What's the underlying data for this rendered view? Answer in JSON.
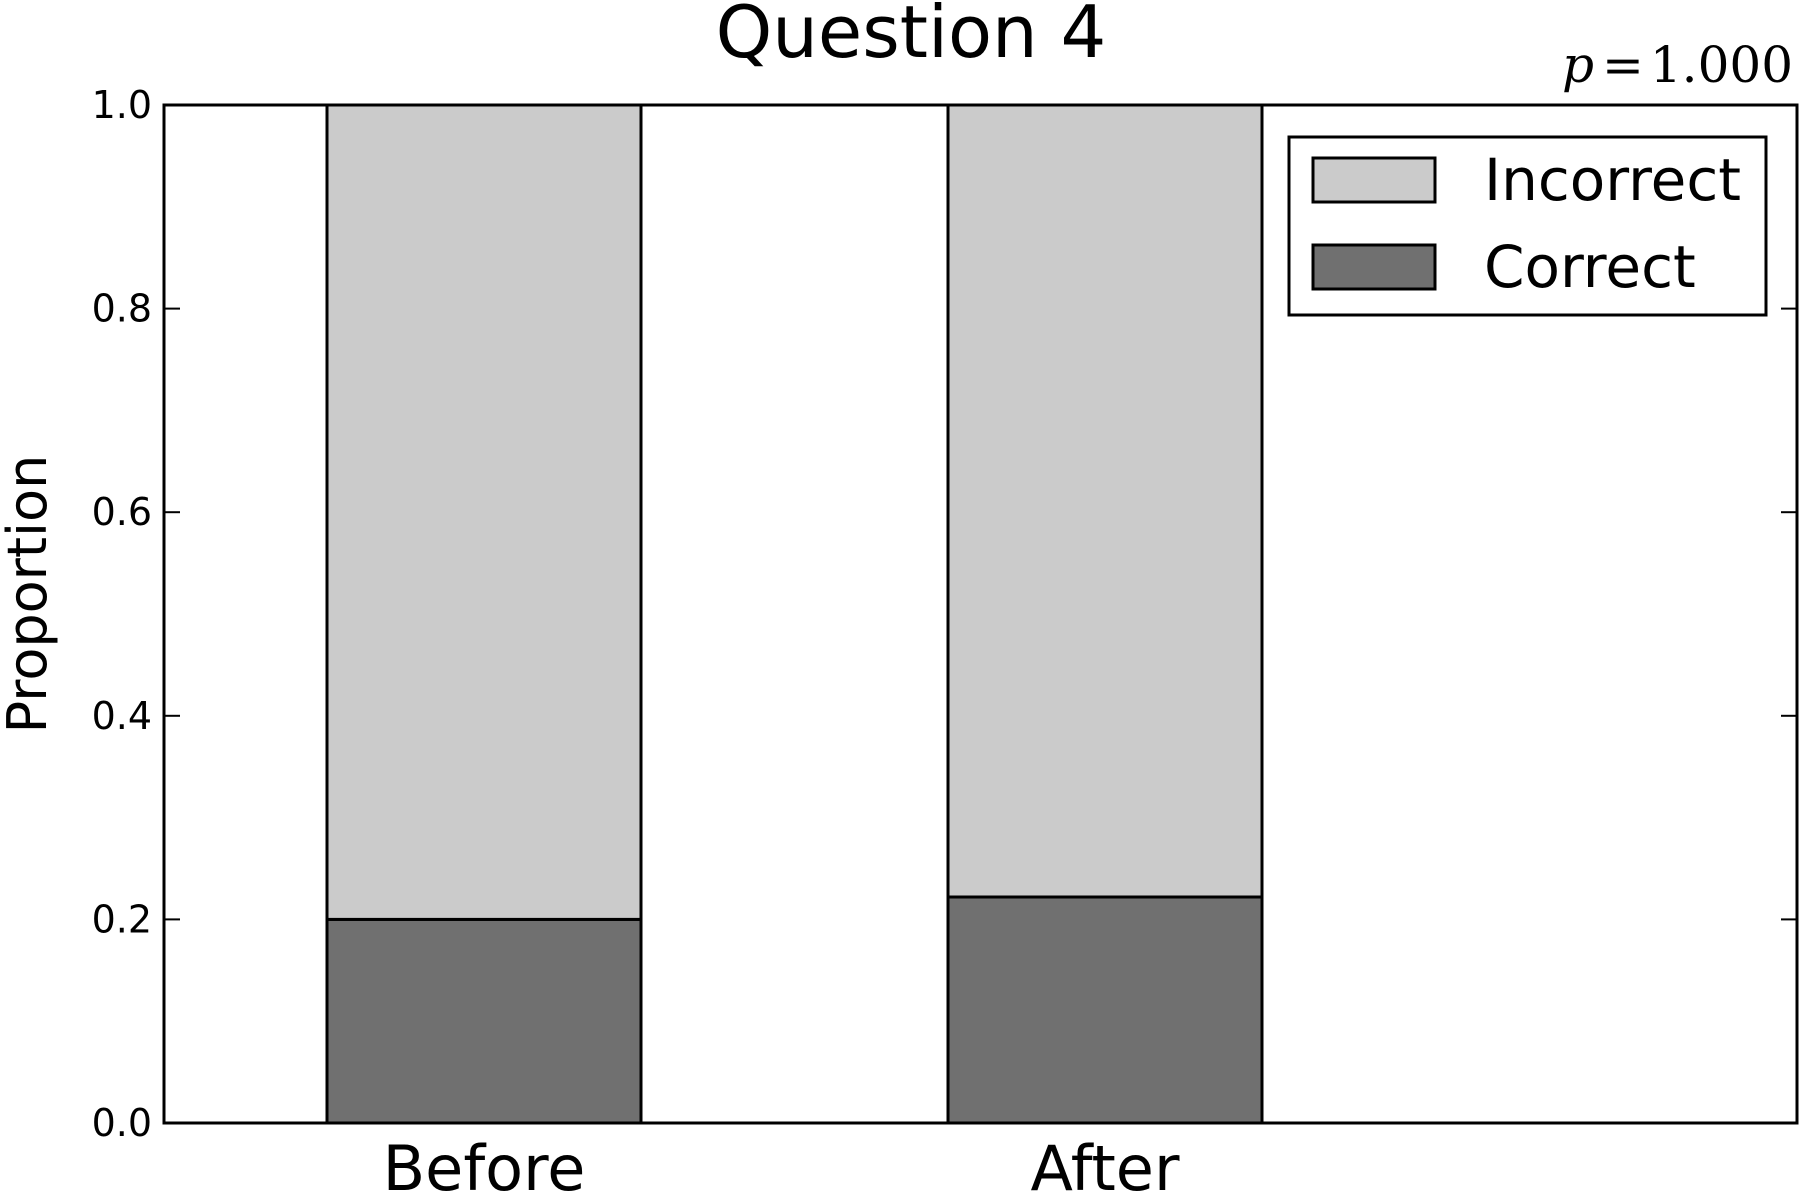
{
  "chart_data": {
    "type": "bar",
    "stacked": true,
    "title": "Question 4",
    "annotation": {
      "symbol": "p",
      "operator": "=",
      "value": "1.000"
    },
    "ylabel": "Proportion",
    "xlabel": "",
    "ylim": [
      0,
      1.0
    ],
    "yticks": [
      "0.0",
      "0.2",
      "0.4",
      "0.6",
      "0.8",
      "1.0"
    ],
    "categories": [
      "Before",
      "After"
    ],
    "series": [
      {
        "name": "Correct",
        "values": [
          0.2,
          0.222
        ],
        "color": "#707070"
      },
      {
        "name": "Incorrect",
        "values": [
          0.8,
          0.778
        ],
        "color": "#cbcbcb"
      }
    ],
    "legend": {
      "position": "top-right",
      "entries": [
        "Incorrect",
        "Correct"
      ]
    },
    "grid": false
  }
}
